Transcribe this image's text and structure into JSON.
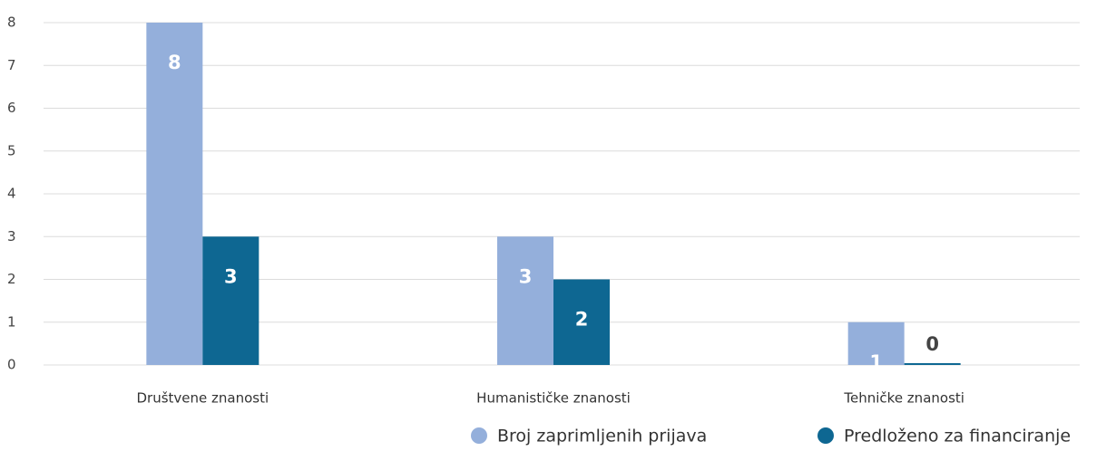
{
  "chart_data": {
    "type": "bar",
    "categories": [
      "Društvene znanosti",
      "Humanističke znanosti",
      "Tehničke znanosti"
    ],
    "series": [
      {
        "name": "Broj zaprimljenih prijava",
        "color": "#94afdb",
        "values": [
          8,
          3,
          1
        ]
      },
      {
        "name": "Predloženo za financiranje",
        "color": "#0e6792",
        "values": [
          3,
          2,
          0
        ]
      }
    ],
    "ylim": [
      0,
      8
    ],
    "yticks": [
      0,
      1,
      2,
      3,
      4,
      5,
      6,
      7,
      8
    ],
    "grid": true,
    "legend": "bottom-right"
  }
}
